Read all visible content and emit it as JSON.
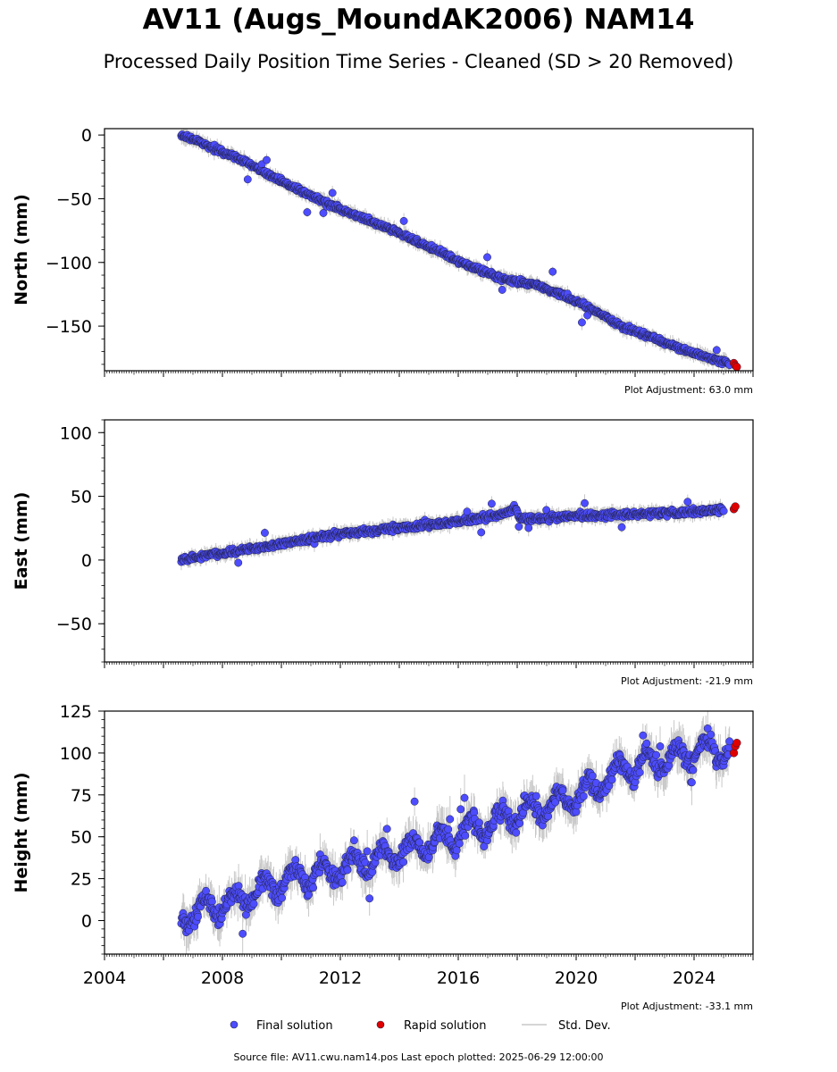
{
  "title": "AV11 (Augs_MoundAK2006) NAM14",
  "subtitle": "Processed Daily Position Time Series - Cleaned (SD > 20 Removed)",
  "legend": {
    "final": "Final solution",
    "rapid": "Rapid solution",
    "sd": "Std. Dev."
  },
  "footer": "Source file: AV11.cwu.nam14.pos  Last epoch plotted: 2025-06-29 12:00:00",
  "colors": {
    "final": "#4d4dff",
    "rapid": "#e00000",
    "sd": "#c8c8c8",
    "edge": "#222244"
  },
  "chart_data": [
    {
      "type": "scatter",
      "ylabel": "North (mm)",
      "note": "Plot Adjustment: 63.0 mm",
      "xlim": [
        2004.0,
        2026.0
      ],
      "ylim": [
        -185,
        5
      ],
      "yticks": [
        0,
        -50,
        -100,
        -150
      ],
      "ytick_labels": [
        "0",
        "−50",
        "−100",
        "−150"
      ],
      "series": [
        {
          "name": "Final solution",
          "points": [
            [
              2006.6,
              0
            ],
            [
              2007.5,
              -8
            ],
            [
              2008.5,
              -18
            ],
            [
              2009.5,
              -30
            ],
            [
              2010.5,
              -42
            ],
            [
              2011.5,
              -53
            ],
            [
              2012.5,
              -63
            ],
            [
              2013.5,
              -72
            ],
            [
              2014.5,
              -82
            ],
            [
              2015.5,
              -93
            ],
            [
              2016.5,
              -104
            ],
            [
              2017.5,
              -113
            ],
            [
              2018.5,
              -117
            ],
            [
              2019.5,
              -125
            ],
            [
              2020.5,
              -136
            ],
            [
              2021.5,
              -150
            ],
            [
              2022.5,
              -158
            ],
            [
              2023.5,
              -167
            ],
            [
              2024.5,
              -175
            ],
            [
              2025.2,
              -180
            ]
          ]
        },
        {
          "name": "Rapid solution",
          "points": [
            [
              2025.35,
              -179
            ],
            [
              2025.4,
              -181
            ],
            [
              2025.45,
              -182
            ]
          ]
        }
      ]
    },
    {
      "type": "scatter",
      "ylabel": "East (mm)",
      "note": "Plot Adjustment: -21.9 mm",
      "xlim": [
        2004.0,
        2026.0
      ],
      "ylim": [
        -80,
        110
      ],
      "yticks": [
        100,
        50,
        0,
        -50
      ],
      "ytick_labels": [
        "100",
        "50",
        "0",
        "−50"
      ],
      "series": [
        {
          "name": "Final solution",
          "points": [
            [
              2006.6,
              0
            ],
            [
              2007.5,
              4
            ],
            [
              2008.5,
              7
            ],
            [
              2009.5,
              11
            ],
            [
              2010.5,
              15
            ],
            [
              2011.5,
              19
            ],
            [
              2012.5,
              22
            ],
            [
              2013.5,
              24
            ],
            [
              2014.5,
              26
            ],
            [
              2015.5,
              29
            ],
            [
              2016.5,
              32
            ],
            [
              2017.5,
              36
            ],
            [
              2017.95,
              41
            ],
            [
              2018.1,
              32
            ],
            [
              2019.0,
              33
            ],
            [
              2020.0,
              35
            ],
            [
              2021.0,
              35
            ],
            [
              2022.0,
              36
            ],
            [
              2023.0,
              37
            ],
            [
              2024.0,
              38
            ],
            [
              2025.0,
              40
            ]
          ]
        },
        {
          "name": "Rapid solution",
          "points": [
            [
              2025.35,
              40
            ],
            [
              2025.4,
              42
            ]
          ]
        }
      ]
    },
    {
      "type": "scatter",
      "ylabel": "Height (mm)",
      "note": "Plot Adjustment: -33.1 mm",
      "xlim": [
        2004.0,
        2026.0
      ],
      "ylim": [
        -20,
        125
      ],
      "yticks": [
        125,
        100,
        75,
        50,
        25,
        0
      ],
      "ytick_labels": [
        "125",
        "100",
        "75",
        "50",
        "25",
        "0"
      ],
      "xticks": [
        2004,
        2008,
        2012,
        2016,
        2020,
        2024
      ],
      "xtick_labels": [
        "2004",
        "2008",
        "2012",
        "2016",
        "2020",
        "2024"
      ],
      "series": [
        {
          "name": "Final solution",
          "points": [
            [
              2006.6,
              2
            ],
            [
              2007.5,
              8
            ],
            [
              2008.5,
              12
            ],
            [
              2009.5,
              20
            ],
            [
              2010.5,
              26
            ],
            [
              2011.5,
              30
            ],
            [
              2012.5,
              34
            ],
            [
              2013.5,
              38
            ],
            [
              2014.5,
              44
            ],
            [
              2015.5,
              48
            ],
            [
              2016.5,
              55
            ],
            [
              2017.5,
              60
            ],
            [
              2018.5,
              67
            ],
            [
              2019.5,
              71
            ],
            [
              2020.5,
              78
            ],
            [
              2021.5,
              90
            ],
            [
              2022.5,
              94
            ],
            [
              2023.5,
              98
            ],
            [
              2024.5,
              103
            ],
            [
              2025.2,
              100
            ]
          ]
        },
        {
          "name": "Rapid solution",
          "points": [
            [
              2025.35,
              100
            ],
            [
              2025.4,
              104
            ],
            [
              2025.45,
              106
            ]
          ]
        }
      ]
    }
  ]
}
